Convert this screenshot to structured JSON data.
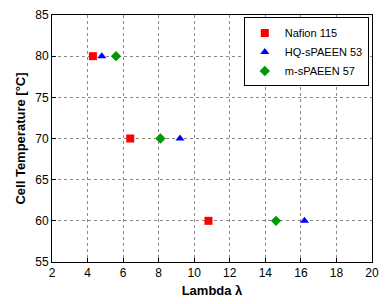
{
  "chart_data": {
    "type": "scatter",
    "x_label": "Lambda λ",
    "y_label": "Cell Temperature [°C]",
    "xlim": [
      2,
      20
    ],
    "xticks": [
      2,
      4,
      6,
      8,
      10,
      12,
      14,
      16,
      18,
      20
    ],
    "ylim": [
      55,
      85
    ],
    "yticks": [
      55,
      60,
      65,
      70,
      75,
      80,
      85
    ],
    "grid": true,
    "legend": "upper right",
    "series": [
      {
        "name": "Nafion 115",
        "color": "#ff0000",
        "marker": "square",
        "x": [
          4.3,
          6.4,
          10.8
        ],
        "values": [
          80,
          70,
          60
        ]
      },
      {
        "name": "HQ-sPAEEN 53",
        "color": "#0000ff",
        "marker": "triangle-up",
        "x": [
          4.8,
          9.2,
          16.2
        ],
        "values": [
          80,
          70,
          60
        ]
      },
      {
        "name": "m-sPAEEN 57",
        "color": "#009900",
        "marker": "diamond",
        "x": [
          5.6,
          8.1,
          14.6
        ],
        "values": [
          80,
          70,
          60
        ]
      }
    ]
  }
}
